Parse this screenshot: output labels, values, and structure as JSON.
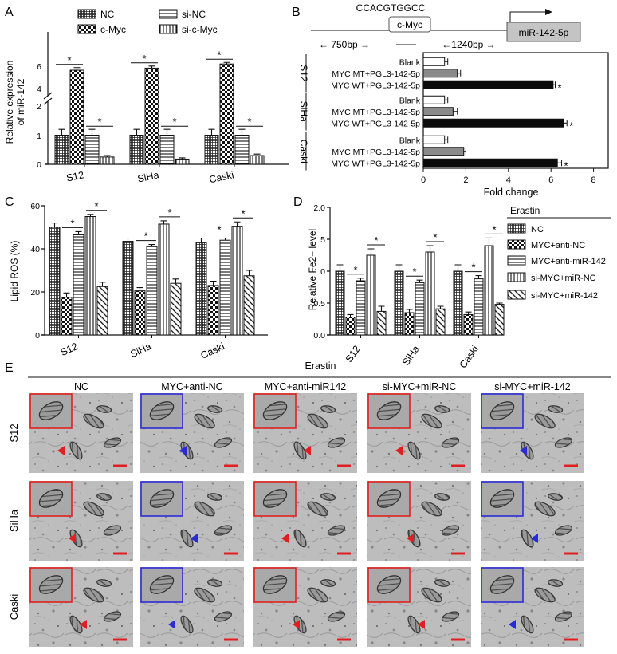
{
  "panels": {
    "A": {
      "letter": "A",
      "ylabel_line1": "Relative expression",
      "ylabel_line2": "of miR-142",
      "yticks_upper": [
        "6",
        "4"
      ],
      "yticks_lower": [
        "2",
        "1",
        "0"
      ],
      "sig": "*",
      "legend": [
        "NC",
        "c-Myc",
        "si-NC",
        "si-c-Myc"
      ]
    },
    "B": {
      "letter": "B",
      "sequence": "CCACGTGGCC",
      "box_label": "c-Myc",
      "target_label": "miR-142-5p",
      "dist_left": "← 750bp →",
      "dist_right": "←1240bp →",
      "xlabel": "Fold change",
      "xticks": [
        "0",
        "2",
        "4",
        "6",
        "8"
      ],
      "sig": "*"
    },
    "C": {
      "letter": "C",
      "ylabel": "Lipid ROS (%)",
      "yticks": [
        "60",
        "40",
        "20",
        "0"
      ],
      "sig": "*"
    },
    "D": {
      "letter": "D",
      "ylabel": "Relative Fe2+ level",
      "yticks": [
        "2.0",
        "1.5",
        "1.0",
        "0.5",
        "0.0"
      ],
      "sig": "*",
      "legend_title": "Erastin",
      "legend": [
        "NC",
        "MYC+anti-NC",
        "MYC+anti-miR-142",
        "si-MYC+miR-NC",
        "si-MYC+miR-142"
      ]
    },
    "E": {
      "letter": "E",
      "title": "Erastin",
      "columns": [
        "NC",
        "MYC+anti-NC",
        "MYC+anti-miR142",
        "si-MYC+miR-NC",
        "si-MYC+miR-142"
      ],
      "rows": [
        "S12",
        "SiHa",
        "Caski"
      ]
    }
  },
  "colors": {
    "red_marker": "#e02020",
    "blue_marker": "#2b2bd6",
    "ink": "#111111",
    "em_bg": "#b8b8b8"
  },
  "chart_data": [
    {
      "id": "A",
      "type": "bar",
      "categories": [
        "S12",
        "SiHa",
        "Caski"
      ],
      "series": [
        {
          "name": "NC",
          "values": [
            1.0,
            1.0,
            1.0
          ],
          "errors": [
            0.2,
            0.2,
            0.2
          ]
        },
        {
          "name": "c-Myc",
          "values": [
            6.0,
            6.2,
            6.6
          ],
          "errors": [
            0.25,
            0.2,
            0.15
          ]
        },
        {
          "name": "si-NC",
          "values": [
            1.0,
            1.0,
            1.0
          ],
          "errors": [
            0.2,
            0.2,
            0.2
          ]
        },
        {
          "name": "si-c-Myc",
          "values": [
            0.25,
            0.18,
            0.3
          ],
          "errors": [
            0.05,
            0.04,
            0.05
          ]
        }
      ],
      "ylim": [
        0,
        7
      ],
      "axis_break": [
        2,
        4
      ],
      "significance": [
        {
          "category": "S12",
          "between": [
            "NC",
            "c-Myc"
          ]
        },
        {
          "category": "S12",
          "between": [
            "si-NC",
            "si-c-Myc"
          ]
        },
        {
          "category": "SiHa",
          "between": [
            "NC",
            "c-Myc"
          ]
        },
        {
          "category": "SiHa",
          "between": [
            "si-NC",
            "si-c-Myc"
          ]
        },
        {
          "category": "Caski",
          "between": [
            "NC",
            "c-Myc"
          ]
        },
        {
          "category": "Caski",
          "between": [
            "si-NC",
            "si-c-Myc"
          ]
        }
      ]
    },
    {
      "id": "B",
      "type": "bar",
      "orientation": "horizontal",
      "groups": [
        {
          "name": "S12",
          "rows": [
            {
              "label": "Blank",
              "value": 1.0,
              "error": 0.15
            },
            {
              "label": "MYC MT+PGL3-142-5p",
              "value": 1.6,
              "error": 0.15
            },
            {
              "label": "MYC WT+PGL3-142-5p",
              "value": 6.1,
              "error": 0.1,
              "sig": true
            }
          ]
        },
        {
          "name": "SiHa",
          "rows": [
            {
              "label": "Blank",
              "value": 1.0,
              "error": 0.15
            },
            {
              "label": "MYC MT+PGL3-142-5p",
              "value": 1.4,
              "error": 0.2
            },
            {
              "label": "MYC WT+PGL3-142-5p",
              "value": 6.6,
              "error": 0.15,
              "sig": true
            }
          ]
        },
        {
          "name": "Caski",
          "rows": [
            {
              "label": "Blank",
              "value": 1.0,
              "error": 0.15
            },
            {
              "label": "MYC MT+PGL3-142-5p",
              "value": 1.9,
              "error": 0.1
            },
            {
              "label": "MYC WT+PGL3-142-5p",
              "value": 6.3,
              "error": 0.2,
              "sig": true
            }
          ]
        }
      ],
      "xlabel": "Fold change",
      "xlim": [
        0,
        8
      ]
    },
    {
      "id": "C",
      "type": "bar",
      "categories": [
        "S12",
        "SiHa",
        "Caski"
      ],
      "series": [
        {
          "name": "NC",
          "values": [
            50,
            43.5,
            43
          ],
          "errors": [
            2,
            1.5,
            2
          ]
        },
        {
          "name": "MYC+anti-NC",
          "values": [
            17.5,
            20.5,
            23
          ],
          "errors": [
            2,
            1.5,
            2
          ]
        },
        {
          "name": "MYC+anti-miR-142",
          "values": [
            46.5,
            41,
            44
          ],
          "errors": [
            1.5,
            1,
            1
          ]
        },
        {
          "name": "si-MYC+miR-NC",
          "values": [
            55,
            51.5,
            50.5
          ],
          "errors": [
            1,
            1.5,
            2
          ]
        },
        {
          "name": "si-MYC+miR-142",
          "values": [
            22.5,
            24,
            27.5
          ],
          "errors": [
            2,
            2,
            2.5
          ]
        }
      ],
      "ylabel": "Lipid ROS (%)",
      "ylim": [
        0,
        60
      ],
      "significance": [
        {
          "category": "S12",
          "between": [
            "MYC+anti-NC",
            "MYC+anti-miR-142"
          ]
        },
        {
          "category": "S12",
          "between": [
            "si-MYC+miR-NC",
            "si-MYC+miR-142"
          ]
        },
        {
          "category": "SiHa",
          "between": [
            "MYC+anti-NC",
            "MYC+anti-miR-142"
          ]
        },
        {
          "category": "SiHa",
          "between": [
            "si-MYC+miR-NC",
            "si-MYC+miR-142"
          ]
        },
        {
          "category": "Caski",
          "between": [
            "MYC+anti-NC",
            "MYC+anti-miR-142"
          ]
        },
        {
          "category": "Caski",
          "between": [
            "si-MYC+miR-NC",
            "si-MYC+miR-142"
          ]
        }
      ]
    },
    {
      "id": "D",
      "type": "bar",
      "categories": [
        "S12",
        "SiHa",
        "Caski"
      ],
      "series": [
        {
          "name": "NC",
          "values": [
            1.0,
            1.0,
            1.0
          ],
          "errors": [
            0.1,
            0.1,
            0.1
          ]
        },
        {
          "name": "MYC+anti-NC",
          "values": [
            0.28,
            0.35,
            0.32
          ],
          "errors": [
            0.04,
            0.05,
            0.04
          ]
        },
        {
          "name": "MYC+anti-miR-142",
          "values": [
            0.85,
            0.82,
            0.88
          ],
          "errors": [
            0.04,
            0.04,
            0.05
          ]
        },
        {
          "name": "si-MYC+miR-NC",
          "values": [
            1.25,
            1.3,
            1.4
          ],
          "errors": [
            0.1,
            0.1,
            0.12
          ]
        },
        {
          "name": "si-MYC+miR-142",
          "values": [
            0.37,
            0.41,
            0.48
          ],
          "errors": [
            0.08,
            0.04,
            0.02
          ]
        }
      ],
      "ylabel": "Relative Fe2+ level",
      "ylim": [
        0,
        2.0
      ],
      "significance": [
        {
          "category": "S12",
          "between": [
            "MYC+anti-NC",
            "MYC+anti-miR-142"
          ]
        },
        {
          "category": "S12",
          "between": [
            "si-MYC+miR-NC",
            "si-MYC+miR-142"
          ]
        },
        {
          "category": "SiHa",
          "between": [
            "MYC+anti-NC",
            "MYC+anti-miR-142"
          ]
        },
        {
          "category": "SiHa",
          "between": [
            "si-MYC+miR-NC",
            "si-MYC+miR-142"
          ]
        },
        {
          "category": "Caski",
          "between": [
            "MYC+anti-NC",
            "MYC+anti-miR-142"
          ]
        },
        {
          "category": "Caski",
          "between": [
            "si-MYC+miR-NC",
            "si-MYC+miR-142"
          ]
        }
      ]
    }
  ],
  "em_grid": {
    "inset_color": [
      [
        "red",
        "blue",
        "red",
        "red",
        "blue"
      ],
      [
        "red",
        "blue",
        "red",
        "red",
        "blue"
      ],
      [
        "red",
        "blue",
        "red",
        "red",
        "blue"
      ]
    ],
    "arrow_color": [
      [
        "red",
        "blue",
        "red",
        "red",
        "blue"
      ],
      [
        "red",
        "blue",
        "red",
        "red",
        "blue"
      ],
      [
        "red",
        "blue",
        "red",
        "red",
        "blue"
      ]
    ]
  }
}
